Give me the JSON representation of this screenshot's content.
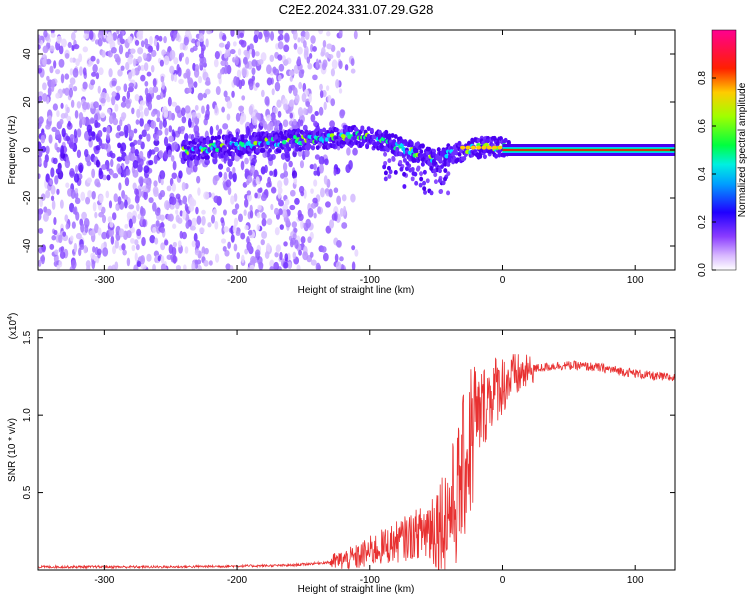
{
  "chart_data": [
    {
      "type": "heatmap",
      "title": "C2E2.2024.331.07.29.G28",
      "xlabel": "Height of straight line (km)",
      "ylabel": "Frequency (Hz)",
      "xlim": [
        -350,
        130
      ],
      "ylim": [
        -50,
        50
      ],
      "x_ticks": [
        -300,
        -200,
        -100,
        0,
        100
      ],
      "y_ticks": [
        -40,
        -20,
        0,
        20,
        40
      ],
      "colorbar": {
        "label": "Normalized spectral amplitude",
        "range": [
          0,
          1
        ],
        "ticks": [
          0.0,
          0.2,
          0.4,
          0.6,
          0.8
        ],
        "tick_labels": [
          "0.0",
          "0.2",
          "0.4",
          "0.6",
          "0.8"
        ],
        "colors": [
          "#ffffff",
          "#b06cff",
          "#5a00ff",
          "#0000ff",
          "#00e0ff",
          "#00ff40",
          "#c0ff00",
          "#ffcc00",
          "#ff0000",
          "#ff0090"
        ]
      },
      "ridge": {
        "description_points": [
          {
            "x": -240,
            "y": 0
          },
          {
            "x": -200,
            "y": 2
          },
          {
            "x": -160,
            "y": 4
          },
          {
            "x": -130,
            "y": 5
          },
          {
            "x": -110,
            "y": 6
          },
          {
            "x": -90,
            "y": 4
          },
          {
            "x": -70,
            "y": 0
          },
          {
            "x": -50,
            "y": -4
          },
          {
            "x": -40,
            "y": -2
          },
          {
            "x": -20,
            "y": 1
          },
          {
            "x": 0,
            "y": 1
          },
          {
            "x": 130,
            "y": 0
          }
        ],
        "line_start_x": 0,
        "line_end_x": 130,
        "line_y": 0
      }
    },
    {
      "type": "line",
      "xlabel": "Height of straight line (km)",
      "ylabel": "SNR (10 * v/v)",
      "y_scale_label": "(x10",
      "y_scale_exp": "4",
      "y_scale_close": ")",
      "xlim": [
        -350,
        130
      ],
      "ylim": [
        0,
        1.55
      ],
      "x_ticks": [
        -300,
        -200,
        -100,
        0,
        100
      ],
      "y_ticks": [
        0.5,
        1.0,
        1.5
      ],
      "y_tick_labels": [
        "0.5",
        "1.0",
        "1.5"
      ],
      "color": "#e83030",
      "series": [
        {
          "name": "SNR",
          "x": [
            -350,
            -300,
            -250,
            -200,
            -160,
            -130,
            -110,
            -100,
            -80,
            -60,
            -45,
            -35,
            -28,
            -22,
            -15,
            -8,
            0,
            10,
            25,
            40,
            55,
            70,
            85,
            100,
            115,
            130
          ],
          "y": [
            0.02,
            0.02,
            0.02,
            0.025,
            0.03,
            0.05,
            0.08,
            0.12,
            0.18,
            0.25,
            0.32,
            0.45,
            0.7,
            0.9,
            1.05,
            1.15,
            1.2,
            1.25,
            1.3,
            1.32,
            1.32,
            1.31,
            1.29,
            1.27,
            1.25,
            1.24
          ]
        }
      ]
    }
  ]
}
